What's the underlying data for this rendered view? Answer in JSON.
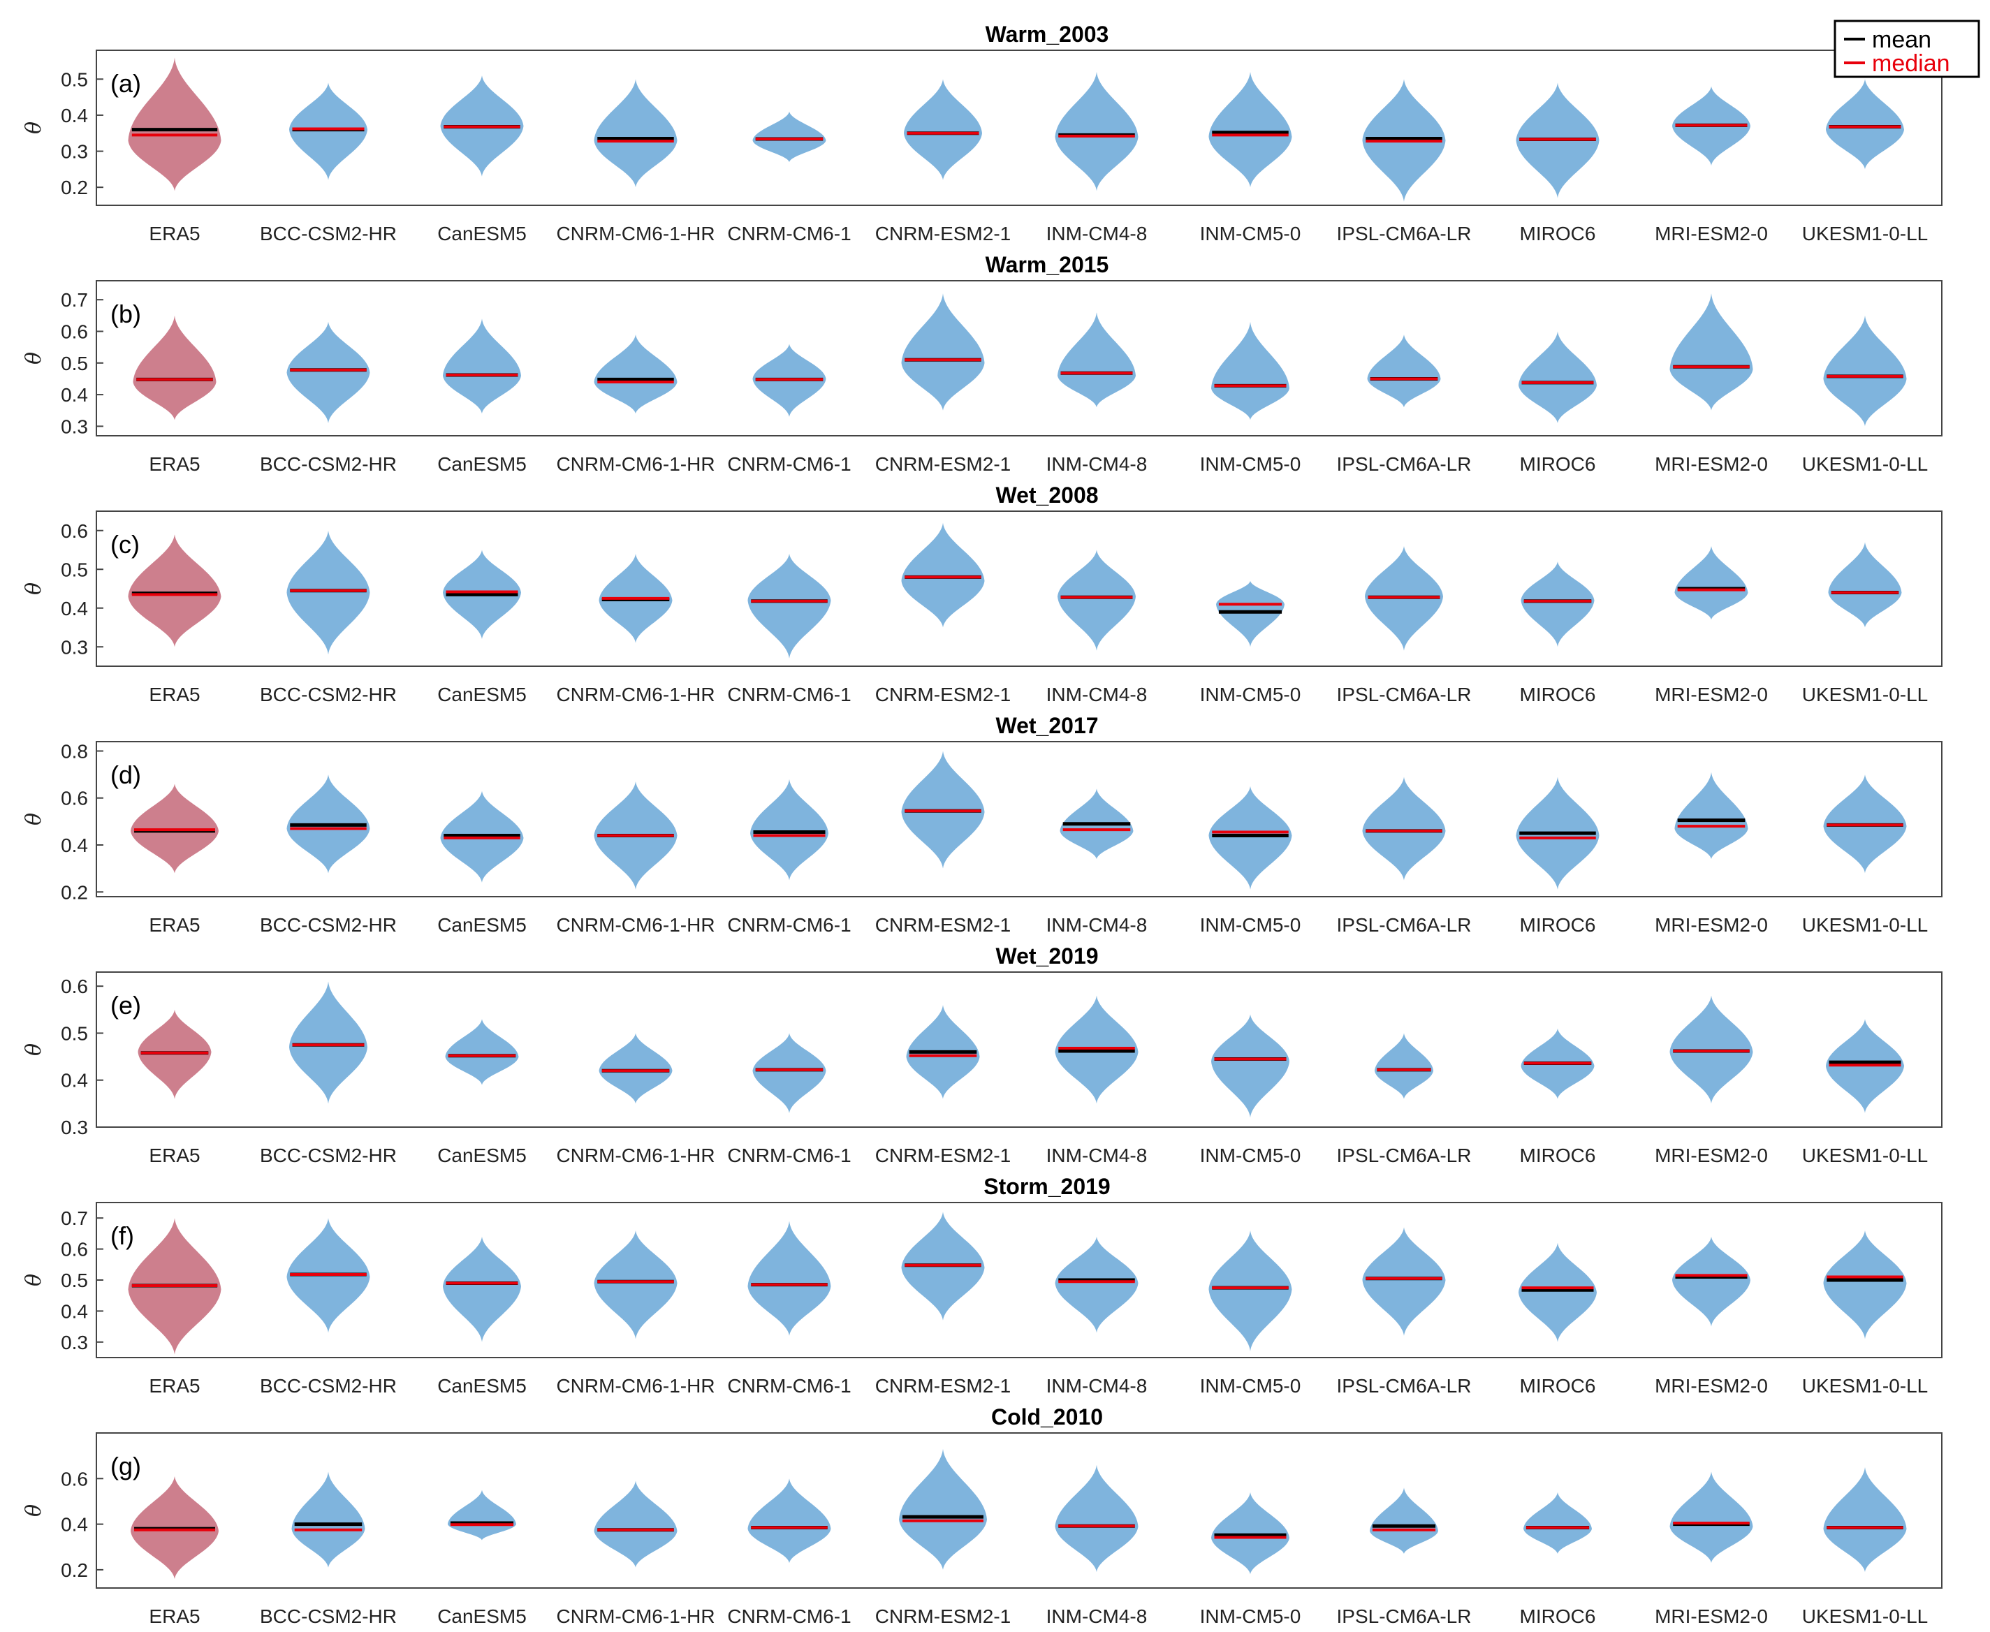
{
  "chart_data": {
    "type": "violin",
    "ylabel": "θ",
    "legend": {
      "placement": "top-right",
      "entries": [
        {
          "label": "mean",
          "color": "#000000"
        },
        {
          "label": "median",
          "color": "#e8000b"
        }
      ]
    },
    "colors": {
      "era5": "#cd7f8d",
      "model": "#7fb4dd",
      "mean": "#000000",
      "median": "#e8000b"
    },
    "categories": [
      "ERA5",
      "BCC-CSM2-HR",
      "CanESM5",
      "CNRM-CM6-1-HR",
      "CNRM-CM6-1",
      "CNRM-ESM2-1",
      "INM-CM4-8",
      "INM-CM5-0",
      "IPSL-CM6A-LR",
      "MIROC6",
      "MRI-ESM2-0",
      "UKESM1-0-LL"
    ],
    "panels": [
      {
        "title": "Warm_2003",
        "label": "(a)",
        "ylim": [
          0.15,
          0.58
        ],
        "yticks": [
          "0.2",
          "0.3",
          "0.4",
          "0.5"
        ],
        "violins": [
          {
            "min": 0.19,
            "max": 0.56,
            "peak": 0.33,
            "width": 0.95,
            "mean": 0.36,
            "median": 0.345
          },
          {
            "min": 0.22,
            "max": 0.49,
            "peak": 0.36,
            "width": 0.8,
            "mean": 0.36,
            "median": 0.362
          },
          {
            "min": 0.23,
            "max": 0.51,
            "peak": 0.37,
            "width": 0.85,
            "mean": 0.368,
            "median": 0.368
          },
          {
            "min": 0.2,
            "max": 0.5,
            "peak": 0.33,
            "width": 0.85,
            "mean": 0.335,
            "median": 0.328
          },
          {
            "min": 0.27,
            "max": 0.41,
            "peak": 0.33,
            "width": 0.75,
            "mean": 0.334,
            "median": 0.334
          },
          {
            "min": 0.22,
            "max": 0.5,
            "peak": 0.35,
            "width": 0.8,
            "mean": 0.35,
            "median": 0.35
          },
          {
            "min": 0.19,
            "max": 0.52,
            "peak": 0.34,
            "width": 0.85,
            "mean": 0.345,
            "median": 0.342
          },
          {
            "min": 0.2,
            "max": 0.52,
            "peak": 0.34,
            "width": 0.85,
            "mean": 0.352,
            "median": 0.345
          },
          {
            "min": 0.16,
            "max": 0.5,
            "peak": 0.33,
            "width": 0.85,
            "mean": 0.335,
            "median": 0.328
          },
          {
            "min": 0.17,
            "max": 0.49,
            "peak": 0.33,
            "width": 0.85,
            "mean": 0.333,
            "median": 0.333
          },
          {
            "min": 0.26,
            "max": 0.48,
            "peak": 0.37,
            "width": 0.8,
            "mean": 0.372,
            "median": 0.372
          },
          {
            "min": 0.25,
            "max": 0.5,
            "peak": 0.36,
            "width": 0.8,
            "mean": 0.368,
            "median": 0.368
          }
        ]
      },
      {
        "title": "Warm_2015",
        "label": "(b)",
        "ylim": [
          0.27,
          0.76
        ],
        "yticks": [
          "0.3",
          "0.4",
          "0.5",
          "0.6",
          "0.7"
        ],
        "violins": [
          {
            "min": 0.32,
            "max": 0.65,
            "peak": 0.44,
            "width": 0.85,
            "mean": 0.448,
            "median": 0.448
          },
          {
            "min": 0.31,
            "max": 0.63,
            "peak": 0.47,
            "width": 0.85,
            "mean": 0.478,
            "median": 0.478
          },
          {
            "min": 0.34,
            "max": 0.64,
            "peak": 0.46,
            "width": 0.8,
            "mean": 0.462,
            "median": 0.462
          },
          {
            "min": 0.34,
            "max": 0.59,
            "peak": 0.44,
            "width": 0.85,
            "mean": 0.448,
            "median": 0.44
          },
          {
            "min": 0.33,
            "max": 0.56,
            "peak": 0.45,
            "width": 0.75,
            "mean": 0.448,
            "median": 0.448
          },
          {
            "min": 0.35,
            "max": 0.72,
            "peak": 0.5,
            "width": 0.85,
            "mean": 0.51,
            "median": 0.51
          },
          {
            "min": 0.36,
            "max": 0.66,
            "peak": 0.46,
            "width": 0.8,
            "mean": 0.468,
            "median": 0.468
          },
          {
            "min": 0.32,
            "max": 0.63,
            "peak": 0.42,
            "width": 0.8,
            "mean": 0.428,
            "median": 0.428
          },
          {
            "min": 0.36,
            "max": 0.59,
            "peak": 0.45,
            "width": 0.75,
            "mean": 0.45,
            "median": 0.45
          },
          {
            "min": 0.31,
            "max": 0.6,
            "peak": 0.43,
            "width": 0.8,
            "mean": 0.438,
            "median": 0.438
          },
          {
            "min": 0.35,
            "max": 0.72,
            "peak": 0.48,
            "width": 0.85,
            "mean": 0.488,
            "median": 0.488
          },
          {
            "min": 0.3,
            "max": 0.65,
            "peak": 0.45,
            "width": 0.85,
            "mean": 0.458,
            "median": 0.458
          }
        ]
      },
      {
        "title": "Wet_2008",
        "label": "(c)",
        "ylim": [
          0.25,
          0.65
        ],
        "yticks": [
          "0.3",
          "0.4",
          "0.5",
          "0.6"
        ],
        "violins": [
          {
            "min": 0.3,
            "max": 0.59,
            "peak": 0.43,
            "width": 0.95,
            "mean": 0.438,
            "median": 0.435
          },
          {
            "min": 0.28,
            "max": 0.6,
            "peak": 0.44,
            "width": 0.85,
            "mean": 0.445,
            "median": 0.445
          },
          {
            "min": 0.32,
            "max": 0.55,
            "peak": 0.44,
            "width": 0.8,
            "mean": 0.435,
            "median": 0.442
          },
          {
            "min": 0.31,
            "max": 0.54,
            "peak": 0.42,
            "width": 0.75,
            "mean": 0.422,
            "median": 0.425
          },
          {
            "min": 0.27,
            "max": 0.54,
            "peak": 0.42,
            "width": 0.85,
            "mean": 0.418,
            "median": 0.418
          },
          {
            "min": 0.35,
            "max": 0.62,
            "peak": 0.47,
            "width": 0.85,
            "mean": 0.48,
            "median": 0.48
          },
          {
            "min": 0.29,
            "max": 0.55,
            "peak": 0.43,
            "width": 0.8,
            "mean": 0.428,
            "median": 0.428
          },
          {
            "min": 0.3,
            "max": 0.47,
            "peak": 0.41,
            "width": 0.7,
            "mean": 0.39,
            "median": 0.41
          },
          {
            "min": 0.29,
            "max": 0.56,
            "peak": 0.43,
            "width": 0.8,
            "mean": 0.428,
            "median": 0.428
          },
          {
            "min": 0.3,
            "max": 0.52,
            "peak": 0.42,
            "width": 0.75,
            "mean": 0.418,
            "median": 0.418
          },
          {
            "min": 0.37,
            "max": 0.56,
            "peak": 0.44,
            "width": 0.75,
            "mean": 0.45,
            "median": 0.447
          },
          {
            "min": 0.35,
            "max": 0.57,
            "peak": 0.44,
            "width": 0.75,
            "mean": 0.44,
            "median": 0.44
          }
        ]
      },
      {
        "title": "Wet_2017",
        "label": "(d)",
        "ylim": [
          0.18,
          0.84
        ],
        "yticks": [
          "0.2",
          "0.4",
          "0.6",
          "0.8"
        ],
        "violins": [
          {
            "min": 0.28,
            "max": 0.66,
            "peak": 0.46,
            "width": 0.9,
            "mean": 0.46,
            "median": 0.465
          },
          {
            "min": 0.28,
            "max": 0.7,
            "peak": 0.47,
            "width": 0.85,
            "mean": 0.485,
            "median": 0.47
          },
          {
            "min": 0.24,
            "max": 0.63,
            "peak": 0.43,
            "width": 0.85,
            "mean": 0.44,
            "median": 0.43
          },
          {
            "min": 0.21,
            "max": 0.67,
            "peak": 0.44,
            "width": 0.85,
            "mean": 0.44,
            "median": 0.44
          },
          {
            "min": 0.25,
            "max": 0.68,
            "peak": 0.45,
            "width": 0.8,
            "mean": 0.455,
            "median": 0.44
          },
          {
            "min": 0.3,
            "max": 0.8,
            "peak": 0.54,
            "width": 0.85,
            "mean": 0.545,
            "median": 0.545
          },
          {
            "min": 0.34,
            "max": 0.64,
            "peak": 0.46,
            "width": 0.75,
            "mean": 0.49,
            "median": 0.465
          },
          {
            "min": 0.21,
            "max": 0.65,
            "peak": 0.44,
            "width": 0.85,
            "mean": 0.44,
            "median": 0.455
          },
          {
            "min": 0.25,
            "max": 0.69,
            "peak": 0.46,
            "width": 0.85,
            "mean": 0.46,
            "median": 0.46
          },
          {
            "min": 0.21,
            "max": 0.69,
            "peak": 0.44,
            "width": 0.85,
            "mean": 0.45,
            "median": 0.43
          },
          {
            "min": 0.34,
            "max": 0.71,
            "peak": 0.47,
            "width": 0.75,
            "mean": 0.505,
            "median": 0.48
          },
          {
            "min": 0.28,
            "max": 0.7,
            "peak": 0.48,
            "width": 0.85,
            "mean": 0.485,
            "median": 0.485
          }
        ]
      },
      {
        "title": "Wet_2019",
        "label": "(e)",
        "ylim": [
          0.3,
          0.63
        ],
        "yticks": [
          "0.3",
          "0.4",
          "0.5",
          "0.6"
        ],
        "violins": [
          {
            "min": 0.36,
            "max": 0.55,
            "peak": 0.46,
            "width": 0.75,
            "mean": 0.458,
            "median": 0.458
          },
          {
            "min": 0.35,
            "max": 0.61,
            "peak": 0.47,
            "width": 0.8,
            "mean": 0.475,
            "median": 0.475
          },
          {
            "min": 0.39,
            "max": 0.53,
            "peak": 0.45,
            "width": 0.75,
            "mean": 0.452,
            "median": 0.452
          },
          {
            "min": 0.35,
            "max": 0.5,
            "peak": 0.42,
            "width": 0.75,
            "mean": 0.42,
            "median": 0.42
          },
          {
            "min": 0.33,
            "max": 0.5,
            "peak": 0.42,
            "width": 0.75,
            "mean": 0.422,
            "median": 0.422
          },
          {
            "min": 0.36,
            "max": 0.56,
            "peak": 0.45,
            "width": 0.75,
            "mean": 0.46,
            "median": 0.452
          },
          {
            "min": 0.35,
            "max": 0.58,
            "peak": 0.46,
            "width": 0.85,
            "mean": 0.462,
            "median": 0.468
          },
          {
            "min": 0.32,
            "max": 0.54,
            "peak": 0.44,
            "width": 0.8,
            "mean": 0.445,
            "median": 0.445
          },
          {
            "min": 0.36,
            "max": 0.5,
            "peak": 0.42,
            "width": 0.6,
            "mean": 0.422,
            "median": 0.422
          },
          {
            "min": 0.36,
            "max": 0.51,
            "peak": 0.43,
            "width": 0.75,
            "mean": 0.436,
            "median": 0.436
          },
          {
            "min": 0.35,
            "max": 0.58,
            "peak": 0.46,
            "width": 0.85,
            "mean": 0.462,
            "median": 0.462
          },
          {
            "min": 0.33,
            "max": 0.53,
            "peak": 0.43,
            "width": 0.8,
            "mean": 0.438,
            "median": 0.432
          }
        ]
      },
      {
        "title": "Storm_2019",
        "label": "(f)",
        "ylim": [
          0.25,
          0.75
        ],
        "yticks": [
          "0.3",
          "0.4",
          "0.5",
          "0.6",
          "0.7"
        ],
        "violins": [
          {
            "min": 0.26,
            "max": 0.7,
            "peak": 0.47,
            "width": 0.95,
            "mean": 0.482,
            "median": 0.482
          },
          {
            "min": 0.33,
            "max": 0.7,
            "peak": 0.51,
            "width": 0.85,
            "mean": 0.518,
            "median": 0.518
          },
          {
            "min": 0.3,
            "max": 0.64,
            "peak": 0.48,
            "width": 0.8,
            "mean": 0.49,
            "median": 0.49
          },
          {
            "min": 0.31,
            "max": 0.66,
            "peak": 0.49,
            "width": 0.85,
            "mean": 0.495,
            "median": 0.495
          },
          {
            "min": 0.32,
            "max": 0.69,
            "peak": 0.48,
            "width": 0.85,
            "mean": 0.485,
            "median": 0.485
          },
          {
            "min": 0.37,
            "max": 0.72,
            "peak": 0.54,
            "width": 0.85,
            "mean": 0.548,
            "median": 0.548
          },
          {
            "min": 0.33,
            "max": 0.64,
            "peak": 0.49,
            "width": 0.85,
            "mean": 0.5,
            "median": 0.495
          },
          {
            "min": 0.27,
            "max": 0.66,
            "peak": 0.47,
            "width": 0.85,
            "mean": 0.475,
            "median": 0.475
          },
          {
            "min": 0.32,
            "max": 0.67,
            "peak": 0.5,
            "width": 0.85,
            "mean": 0.505,
            "median": 0.505
          },
          {
            "min": 0.3,
            "max": 0.62,
            "peak": 0.46,
            "width": 0.8,
            "mean": 0.468,
            "median": 0.475
          },
          {
            "min": 0.35,
            "max": 0.64,
            "peak": 0.5,
            "width": 0.8,
            "mean": 0.51,
            "median": 0.515
          },
          {
            "min": 0.31,
            "max": 0.66,
            "peak": 0.49,
            "width": 0.85,
            "mean": 0.5,
            "median": 0.51
          }
        ]
      },
      {
        "title": "Cold_2010",
        "label": "(g)",
        "ylim": [
          0.12,
          0.8
        ],
        "yticks": [
          "0.2",
          "0.4",
          "0.6"
        ],
        "violins": [
          {
            "min": 0.16,
            "max": 0.61,
            "peak": 0.37,
            "width": 0.9,
            "mean": 0.38,
            "median": 0.375
          },
          {
            "min": 0.21,
            "max": 0.63,
            "peak": 0.38,
            "width": 0.75,
            "mean": 0.4,
            "median": 0.375
          },
          {
            "min": 0.33,
            "max": 0.55,
            "peak": 0.4,
            "width": 0.7,
            "mean": 0.405,
            "median": 0.398
          },
          {
            "min": 0.21,
            "max": 0.59,
            "peak": 0.37,
            "width": 0.85,
            "mean": 0.375,
            "median": 0.375
          },
          {
            "min": 0.23,
            "max": 0.6,
            "peak": 0.38,
            "width": 0.85,
            "mean": 0.385,
            "median": 0.385
          },
          {
            "min": 0.2,
            "max": 0.73,
            "peak": 0.42,
            "width": 0.9,
            "mean": 0.432,
            "median": 0.415
          },
          {
            "min": 0.19,
            "max": 0.66,
            "peak": 0.39,
            "width": 0.85,
            "mean": 0.392,
            "median": 0.392
          },
          {
            "min": 0.18,
            "max": 0.54,
            "peak": 0.34,
            "width": 0.8,
            "mean": 0.352,
            "median": 0.342
          },
          {
            "min": 0.27,
            "max": 0.56,
            "peak": 0.37,
            "width": 0.7,
            "mean": 0.392,
            "median": 0.375
          },
          {
            "min": 0.27,
            "max": 0.54,
            "peak": 0.38,
            "width": 0.7,
            "mean": 0.385,
            "median": 0.385
          },
          {
            "min": 0.23,
            "max": 0.63,
            "peak": 0.39,
            "width": 0.85,
            "mean": 0.4,
            "median": 0.405
          },
          {
            "min": 0.19,
            "max": 0.65,
            "peak": 0.38,
            "width": 0.85,
            "mean": 0.385,
            "median": 0.385
          }
        ]
      }
    ]
  }
}
